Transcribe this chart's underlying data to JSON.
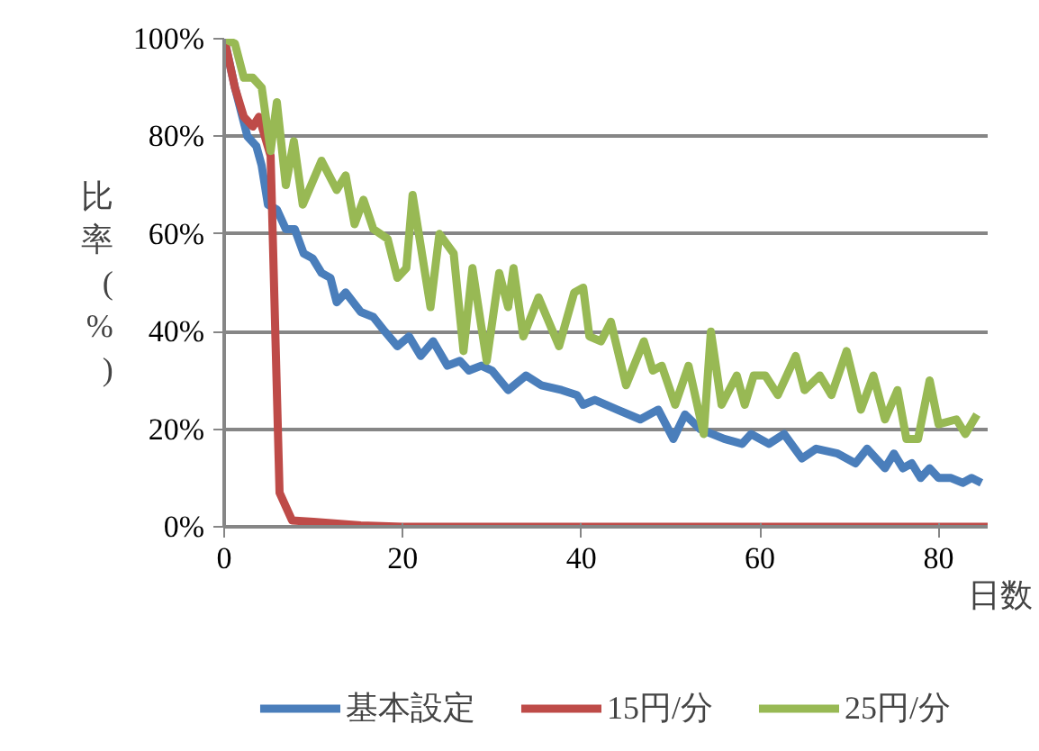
{
  "chart_data": {
    "type": "line",
    "xlabel": "日数",
    "ylabel": "比率(%)",
    "xlim": [
      0,
      85.5
    ],
    "ylim": [
      0,
      100
    ],
    "xticks": [
      0,
      20,
      40,
      60,
      80
    ],
    "yticks": [
      {
        "value": 0,
        "label": "0%"
      },
      {
        "value": 20,
        "label": "20%"
      },
      {
        "value": 40,
        "label": "40%"
      },
      {
        "value": 60,
        "label": "60%"
      },
      {
        "value": 80,
        "label": "80%"
      },
      {
        "value": 100,
        "label": "100%"
      }
    ],
    "grid": "y",
    "legend": "bottom",
    "marker": "none",
    "line_style": "solid",
    "series": [
      {
        "name": "基本設定",
        "color": "#4a7ebb",
        "x": [
          0,
          1.2,
          2.6,
          3.6,
          4.2,
          4.9,
          5.9,
          6.9,
          7.9,
          8.9,
          9.9,
          10.9,
          11.9,
          12.6,
          13.6,
          15.3,
          16.7,
          18,
          19.4,
          20.7,
          22,
          23.4,
          25,
          26.4,
          27.4,
          28.8,
          30,
          31.8,
          33.8,
          35.5,
          37.8,
          39.5,
          40.2,
          41.5,
          44,
          46.6,
          48.6,
          50.3,
          51.6,
          53.3,
          56,
          58,
          59,
          61,
          62.7,
          64.7,
          66.3,
          68.7,
          70.7,
          72,
          74,
          75,
          76,
          77,
          78,
          79,
          80,
          81.4,
          82.7,
          83.7,
          84.8
        ],
        "values": [
          100,
          90,
          80,
          78,
          74,
          66,
          65,
          61,
          61,
          56,
          55,
          52,
          51,
          46,
          48,
          44,
          43,
          40,
          37,
          39,
          35,
          38,
          33,
          34,
          32,
          33,
          32,
          28,
          31,
          29,
          28,
          27,
          25,
          26,
          24,
          22,
          24,
          18,
          23,
          20,
          18,
          17,
          19,
          17,
          19,
          14,
          16,
          15,
          13,
          16,
          12,
          15,
          12,
          13,
          10,
          12,
          10,
          10,
          9,
          10,
          9
        ]
      },
      {
        "name": "15円/分",
        "color": "#be4b48",
        "x": [
          0,
          1.2,
          2.2,
          3.2,
          3.9,
          5.2,
          6.2,
          7.6,
          10,
          15.3,
          20,
          85.5
        ],
        "values": [
          100,
          90,
          84,
          82,
          84,
          76,
          7,
          1.3,
          1,
          0.3,
          0,
          0
        ]
      },
      {
        "name": "25円/分",
        "color": "#98b954",
        "x": [
          0,
          1.2,
          2.2,
          3.2,
          4.2,
          5.2,
          5.9,
          6.9,
          7.8,
          8.8,
          10.9,
          12.6,
          13.6,
          14.6,
          15.6,
          16.7,
          18.3,
          19.4,
          20.4,
          21.1,
          23.1,
          24.1,
          25.7,
          26.8,
          27.8,
          28.8,
          29.4,
          30.8,
          31.8,
          32.4,
          33.5,
          35.2,
          37.5,
          39.2,
          40.2,
          40.9,
          42.2,
          43.3,
          45,
          47,
          48,
          49,
          50.5,
          52,
          53.7,
          54.5,
          55.7,
          57.4,
          58.3,
          59.3,
          60.6,
          62,
          64,
          65,
          66.7,
          68,
          69.7,
          71.3,
          72.7,
          74,
          75.4,
          76.4,
          77.7,
          79,
          80,
          82,
          83,
          84.3
        ],
        "values": [
          100,
          99,
          92,
          92,
          90,
          77,
          87,
          70,
          79,
          66,
          75,
          69,
          72,
          62,
          67,
          61,
          59,
          51,
          53,
          68,
          45,
          60,
          56,
          36,
          53,
          41,
          34,
          52,
          45,
          53,
          39,
          47,
          37,
          48,
          49,
          39,
          38,
          42,
          29,
          38,
          32,
          33,
          25,
          33,
          19,
          40,
          25,
          31,
          25,
          31,
          31,
          27,
          35,
          28,
          31,
          27,
          36,
          24,
          31,
          22,
          28,
          18,
          18,
          30,
          21,
          22,
          19,
          23
        ]
      }
    ]
  }
}
